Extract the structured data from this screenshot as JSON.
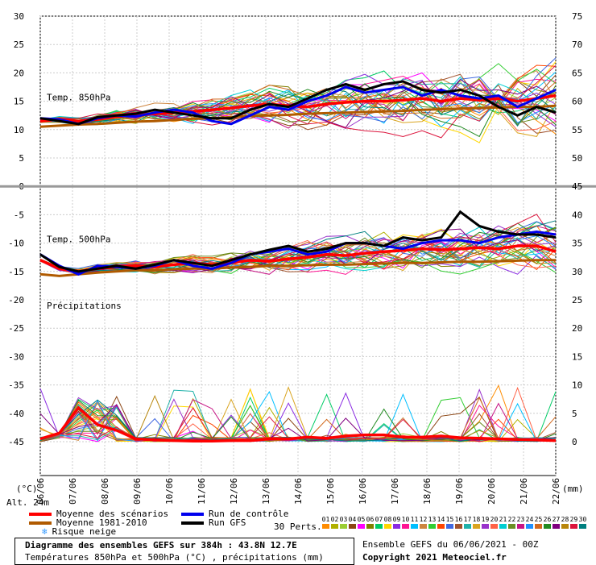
{
  "chart_data": {
    "type": "line",
    "title": "Diagramme des ensembles GEFS sur 384h : 43.8N 12.7E",
    "subtitle": "Températures 850hPa et 500hPa (°C) , précipitations (mm)",
    "x_dates": [
      "06/06",
      "07/06",
      "08/06",
      "09/06",
      "10/06",
      "11/06",
      "12/06",
      "13/06",
      "14/06",
      "15/06",
      "16/06",
      "17/06",
      "18/06",
      "19/06",
      "20/06",
      "21/06",
      "22/06"
    ],
    "left_axis": {
      "unit_label": "(°C)",
      "ticks": [
        30,
        25,
        20,
        15,
        10,
        5,
        0,
        -5,
        -10,
        -15,
        -20,
        -25,
        -30,
        -35,
        -40,
        -45
      ],
      "ylim": [
        -45,
        30
      ]
    },
    "right_axis": {
      "unit_label": "(mm)",
      "ticks_upper": [
        75,
        70,
        65,
        60,
        55,
        50,
        45
      ],
      "ticks_lower": [
        40,
        35,
        30,
        25,
        20,
        15,
        10,
        5,
        0
      ]
    },
    "panel_labels": {
      "t850": "Temp. 850hPa",
      "t500": "Temp. 500hPa",
      "precip": "Précipitations"
    },
    "altitude": "Alt. 24m",
    "series": [
      {
        "name": "Moyenne des scénarios",
        "color": "#ff0000",
        "t850": [
          11.5,
          11.8,
          11.5,
          11.8,
          12.3,
          12.5,
          12.8,
          13.0,
          13.2,
          13.5,
          13.8,
          14.2,
          14.5,
          14.2,
          14.0,
          14.5,
          14.8,
          15.0,
          15.0,
          15.2,
          15.5,
          15.0,
          15.5,
          15.2,
          15.5,
          15.0,
          15.5,
          16.0
        ],
        "t500": [
          -13,
          -14.5,
          -15,
          -14.5,
          -14.2,
          -14.0,
          -14.2,
          -13.8,
          -13.5,
          -13.8,
          -13.5,
          -13.0,
          -13.2,
          -12.8,
          -12.5,
          -12.0,
          -12.2,
          -11.8,
          -11.5,
          -11.3,
          -11.0,
          -11.2,
          -11.0,
          -10.8,
          -11.0,
          -10.5,
          -10.5,
          -11.5
        ],
        "precip": [
          0.5,
          1.5,
          6,
          3,
          2,
          0.5,
          0.3,
          0.2,
          0.1,
          0.1,
          0.2,
          0.2,
          0.5,
          0.5,
          0.8,
          0.6,
          1.0,
          1.2,
          1.2,
          0.8,
          0.8,
          1.0,
          0.7,
          0.6,
          0.5,
          0.4,
          0.3,
          0.2
        ]
      },
      {
        "name": "Moyenne 1981-2010",
        "color": "#b05a00",
        "t850": [
          10.5,
          10.7,
          10.9,
          11.0,
          11.2,
          11.4,
          11.5,
          11.7,
          11.9,
          12.0,
          12.2,
          12.4,
          12.5,
          12.6,
          12.8,
          12.9,
          13.0,
          13.1,
          13.2,
          13.3,
          13.5,
          13.6,
          13.7,
          13.8,
          13.9,
          14.0,
          14.0,
          14.2
        ],
        "t500": [
          -15.5,
          -15.8,
          -15.5,
          -15.2,
          -15.0,
          -14.8,
          -14.8,
          -14.6,
          -14.5,
          -14.5,
          -14.3,
          -14.2,
          -14.0,
          -14.0,
          -13.9,
          -13.8,
          -13.8,
          -13.7,
          -13.6,
          -13.5,
          -13.5,
          -13.4,
          -13.3,
          -13.3,
          -13.2,
          -13.1,
          -13.0,
          -13.0
        ]
      },
      {
        "name": "Run de contrôle",
        "color": "#0000ee",
        "t850": [
          12,
          11.8,
          11,
          12,
          12.5,
          12.3,
          13,
          13.5,
          13.0,
          11.5,
          11.0,
          12.5,
          14.0,
          13.5,
          15,
          16,
          17.5,
          16.5,
          17,
          17.5,
          16,
          17,
          16,
          15.5,
          16,
          14,
          15.5,
          17
        ],
        "t500": [
          -12,
          -14,
          -15.5,
          -14,
          -14.2,
          -14.5,
          -14,
          -13,
          -14,
          -14.5,
          -13.5,
          -12,
          -11.5,
          -11.0,
          -12,
          -11.5,
          -10,
          -10,
          -10.5,
          -11,
          -10,
          -9.5,
          -9.5,
          -10,
          -9,
          -8.5,
          -8.0,
          -8.5
        ]
      },
      {
        "name": "Run GFS",
        "color": "#000000",
        "t850": [
          12,
          11.5,
          11,
          12.2,
          12.5,
          12.8,
          13.5,
          13.0,
          12.5,
          12.0,
          12.0,
          13.5,
          14.5,
          14.0,
          15.5,
          17,
          18,
          17,
          18,
          18.5,
          17,
          16.5,
          17,
          16,
          14,
          12.5,
          14,
          13
        ],
        "t500": [
          -12,
          -14.2,
          -15,
          -14.5,
          -14,
          -14.5,
          -13.8,
          -13,
          -13.5,
          -14,
          -13,
          -12,
          -11.2,
          -10.5,
          -11.5,
          -11,
          -10,
          -10,
          -10.5,
          -9,
          -9.5,
          -9.0,
          -4.5,
          -7,
          -8,
          -8.5,
          -8.5,
          -9
        ]
      }
    ],
    "perturbations_label": "30 Perts.",
    "perturbations": [
      "01",
      "02",
      "03",
      "04",
      "05",
      "06",
      "07",
      "08",
      "09",
      "10",
      "11",
      "12",
      "13",
      "14",
      "15",
      "16",
      "17",
      "18",
      "19",
      "20",
      "21",
      "22",
      "23",
      "24",
      "25",
      "26",
      "27",
      "28",
      "29",
      "30"
    ],
    "pert_colors": [
      "#ff8c00",
      "#b0b000",
      "#9acd32",
      "#8b4513",
      "#ff00ff",
      "#808000",
      "#00cc66",
      "#ffd700",
      "#8a2be2",
      "#ff1493",
      "#00bfff",
      "#cd853f",
      "#32cd32",
      "#ff4500",
      "#4169e1",
      "#a0522d",
      "#20b2aa",
      "#daa520",
      "#9932cc",
      "#ff6347",
      "#00ced1",
      "#6b8e23",
      "#c71585",
      "#1e90ff",
      "#d2691e",
      "#228b22",
      "#800080",
      "#b8860b",
      "#dc143c",
      "#008080"
    ],
    "snow_risk_label": "Risque neige",
    "grid": true,
    "legend_position": "bottom"
  },
  "footer": {
    "ensemble_info": "Ensemble GEFS du 06/06/2021 - 00Z",
    "copyright": "Copyright 2021 Meteociel.fr"
  },
  "legend": {
    "moyenne_scenarios": "Moyenne des scénarios",
    "moyenne_1981": "Moyenne 1981-2010",
    "risque_neige": "Risque neige",
    "run_controle": "Run de contrôle",
    "run_gfs": "Run GFS"
  },
  "snowflake_icon": "❄"
}
